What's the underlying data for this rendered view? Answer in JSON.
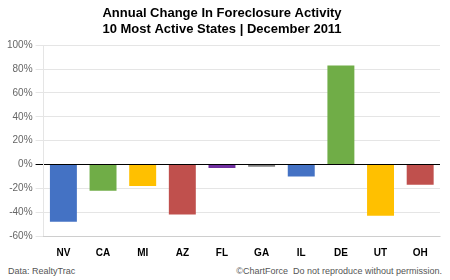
{
  "chart_data": {
    "type": "bar",
    "title": "Annual Change In Foreclosure Activity\n10 Most Active States | December 2011",
    "categories": [
      "NV",
      "CA",
      "MI",
      "AZ",
      "FL",
      "GA",
      "IL",
      "DE",
      "UT",
      "OH"
    ],
    "values": [
      -48,
      -22,
      -18,
      -42,
      -3,
      -2,
      -10,
      83,
      -43,
      -17
    ],
    "colors": [
      "#4472C4",
      "#70AD47",
      "#FFC000",
      "#C0504D",
      "#7030A0",
      "#808080",
      "#4472C4",
      "#70AD47",
      "#FFC000",
      "#C0504D"
    ],
    "ylim": [
      -60,
      100
    ],
    "yticks": [
      {
        "value": -60,
        "label": "-60%"
      },
      {
        "value": -40,
        "label": "-40%"
      },
      {
        "value": -20,
        "label": "-20%"
      },
      {
        "value": 0,
        "label": "0%"
      },
      {
        "value": 20,
        "label": "20%"
      },
      {
        "value": 40,
        "label": "40%"
      },
      {
        "value": 60,
        "label": "60%"
      },
      {
        "value": 80,
        "label": "80%"
      },
      {
        "value": 100,
        "label": "100%"
      }
    ],
    "grid": true,
    "annotations": [
      "Data: RealtyTrac",
      "©ChartForce  Do not reproduce without permission."
    ]
  }
}
